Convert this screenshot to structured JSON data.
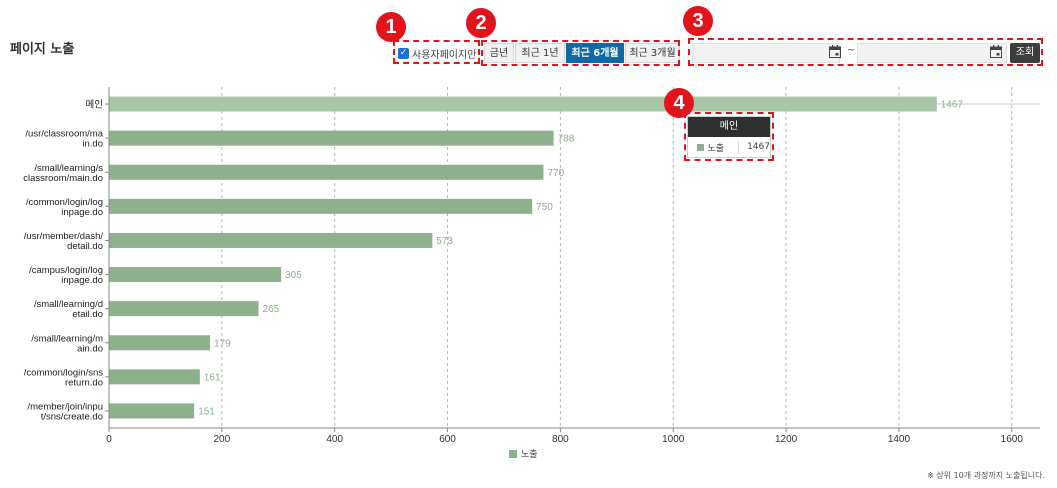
{
  "page_title": "페이지 노출",
  "markers": [
    "1",
    "2",
    "3",
    "4"
  ],
  "toolbar": {
    "user_page_only_label": "사용자페이지만",
    "user_page_only_checked": true,
    "period_buttons": [
      "금년",
      "최근 1년",
      "최근 6개월",
      "최근 3개월"
    ],
    "active_period": "최근 6개월",
    "start_date": "",
    "end_date": "",
    "date_separator": "~",
    "search_label": "조회"
  },
  "tooltip": {
    "title": "메인",
    "series": "노출",
    "value": "1467"
  },
  "legend_label": "노출",
  "footnote": "※ 상위 10개 과정까지 노출됩니다.",
  "colors": {
    "bar": "#8db08d",
    "highlight_bar": "#a8c5a8",
    "value_label": "#8db08d",
    "active_button": "#0e6aa6",
    "marker": "#e3131b"
  },
  "chart_data": {
    "type": "bar",
    "orientation": "horizontal",
    "categories": [
      [
        "메인"
      ],
      [
        "/usr/classroom/ma",
        "in.do"
      ],
      [
        "/small/learning/s",
        "classroom/main.do"
      ],
      [
        "/common/login/log",
        "inpage.do"
      ],
      [
        "/usr/member/dash/",
        "detail.do"
      ],
      [
        "/campus/login/log",
        "inpage.do"
      ],
      [
        "/small/learning/d",
        "etail.do"
      ],
      [
        "/small/learning/m",
        "ain.do"
      ],
      [
        "/common/login/sns",
        "return.do"
      ],
      [
        "/member/join/inpu",
        "t/sns/create.do"
      ]
    ],
    "series": [
      {
        "name": "노출",
        "values": [
          1467,
          788,
          770,
          750,
          573,
          305,
          265,
          179,
          161,
          151
        ]
      }
    ],
    "xlim": [
      0,
      1650
    ],
    "x_ticks": [
      0,
      200,
      400,
      600,
      800,
      1000,
      1200,
      1400,
      1600
    ],
    "grid": "vertical dashed",
    "legend": "bottom-center",
    "highlighted_category": 0
  }
}
